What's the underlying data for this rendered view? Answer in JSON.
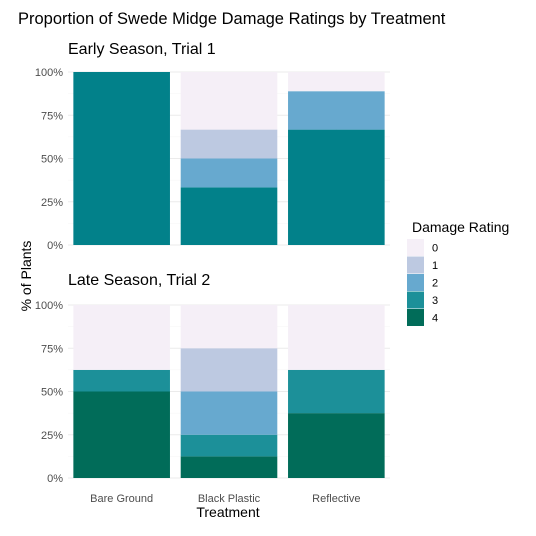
{
  "title": "Proportion of Swede Midge Damage Ratings by Treatment",
  "chart_data": [
    {
      "type": "bar",
      "stacked": true,
      "title": "Early Season, Trial 1",
      "categories": [
        "Bare Ground",
        "Black Plastic",
        "Reflective"
      ],
      "series": [
        {
          "name": "0",
          "values": [
            0,
            33.3,
            11.1
          ]
        },
        {
          "name": "1",
          "values": [
            0,
            16.7,
            0
          ]
        },
        {
          "name": "2",
          "values": [
            0,
            16.7,
            22.2
          ]
        },
        {
          "name": "3",
          "values": [
            100,
            33.3,
            66.7
          ]
        },
        {
          "name": "4",
          "values": [
            0,
            0,
            0
          ]
        }
      ],
      "ylim": [
        0,
        100
      ],
      "yticks": [
        "0%",
        "25%",
        "50%",
        "75%",
        "100%"
      ],
      "grid": true
    },
    {
      "type": "bar",
      "stacked": true,
      "title": "Late Season, Trial 2",
      "categories": [
        "Bare Ground",
        "Black Plastic",
        "Reflective"
      ],
      "series": [
        {
          "name": "0",
          "values": [
            37.5,
            25,
            37.5
          ]
        },
        {
          "name": "1",
          "values": [
            0,
            25,
            0
          ]
        },
        {
          "name": "2",
          "values": [
            0,
            25,
            0
          ]
        },
        {
          "name": "3",
          "values": [
            12.5,
            12.5,
            25
          ]
        },
        {
          "name": "4",
          "values": [
            50,
            12.5,
            37.5
          ]
        }
      ],
      "ylim": [
        0,
        100
      ],
      "yticks": [
        "0%",
        "25%",
        "50%",
        "75%",
        "100%"
      ],
      "grid": true
    }
  ],
  "axes": {
    "xlabel": "Treatment",
    "ylabel": "% of Plants"
  },
  "legend": {
    "title": "Damage Rating",
    "placement": "right",
    "items": [
      {
        "label": "0",
        "color": "#f5eff7"
      },
      {
        "label": "1",
        "color": "#bdc9e1"
      },
      {
        "label": "2",
        "color": "#67a9cf"
      },
      {
        "label": "3",
        "color": "#1c9099"
      },
      {
        "label": "4",
        "color": "#016c59"
      }
    ]
  },
  "special_colors": {
    "early_rating_3": "#02818a"
  }
}
